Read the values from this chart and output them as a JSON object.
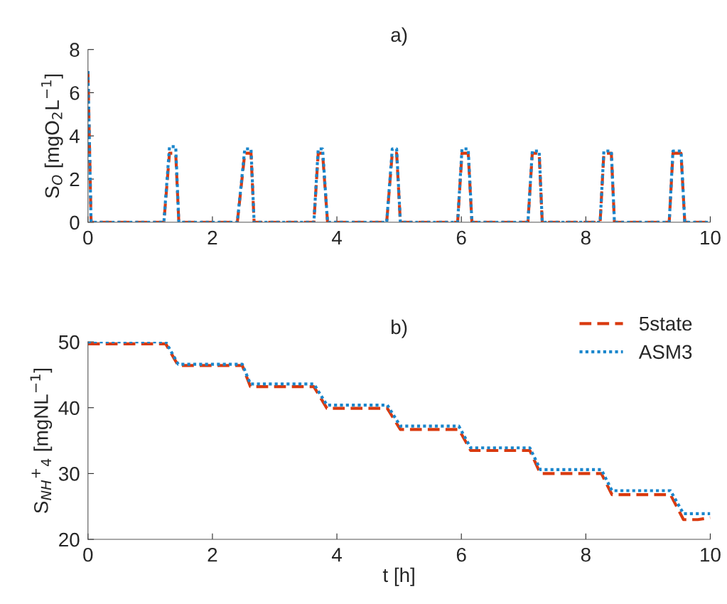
{
  "chart_data": [
    {
      "type": "line",
      "title": "a)",
      "ylabel": "S$_{O}$ [mgO$_{2}$L$^{−1}$]",
      "xlim": [
        0,
        10
      ],
      "xticks": [
        0,
        2,
        4,
        6,
        8,
        10
      ],
      "ylim": [
        0,
        8
      ],
      "yticks": [
        0,
        2,
        4,
        6,
        8
      ],
      "grid": false,
      "legend": false,
      "series": [
        {
          "color": "#d93a0f",
          "line_style": "dashed",
          "x": [
            0,
            0.05,
            1.22,
            1.31,
            1.41,
            1.46,
            2.4,
            2.52,
            2.62,
            2.67,
            3.63,
            3.7,
            3.77,
            3.85,
            4.8,
            4.89,
            4.96,
            5.02,
            5.94,
            6.01,
            6.11,
            6.17,
            7.07,
            7.14,
            7.25,
            7.3,
            8.23,
            8.29,
            8.41,
            8.46,
            9.34,
            9.4,
            9.53,
            9.59,
            10
          ],
          "values": [
            7,
            0,
            0,
            3.2,
            3.2,
            0,
            0,
            3.2,
            3.2,
            0,
            0,
            3.2,
            3.2,
            0,
            0,
            3.2,
            3.2,
            0,
            0,
            3.2,
            3.2,
            0,
            0,
            3.2,
            3.2,
            0,
            0,
            3.2,
            3.2,
            0,
            0,
            3.2,
            3.2,
            0,
            0
          ]
        },
        {
          "color": "#1a86cc",
          "line_style": "dotted",
          "x": [
            0,
            0.05,
            1.22,
            1.31,
            1.41,
            1.46,
            2.4,
            2.52,
            2.62,
            2.67,
            3.63,
            3.7,
            3.77,
            3.85,
            4.8,
            4.89,
            4.96,
            5.02,
            5.94,
            6.01,
            6.11,
            6.17,
            7.07,
            7.14,
            7.25,
            7.3,
            8.23,
            8.29,
            8.41,
            8.46,
            9.34,
            9.4,
            9.53,
            9.59,
            10
          ],
          "values": [
            7,
            0,
            0,
            3.5,
            3.5,
            0,
            0,
            3.4,
            3.4,
            0,
            0,
            3.4,
            3.4,
            0,
            0,
            3.4,
            3.4,
            0,
            0,
            3.4,
            3.4,
            0,
            0,
            3.3,
            3.3,
            0,
            0,
            3.3,
            3.3,
            0,
            0,
            3.3,
            3.3,
            0,
            0
          ]
        }
      ]
    },
    {
      "type": "line",
      "title": "b)",
      "xlabel": "t [h]",
      "ylabel": "S$_{NH}$$^{+}$$_{4}$ [mgNL$^{−1}$]",
      "xlim": [
        0,
        10
      ],
      "xticks": [
        0,
        2,
        4,
        6,
        8,
        10
      ],
      "ylim": [
        20,
        50
      ],
      "yticks": [
        20,
        30,
        40,
        50
      ],
      "grid": false,
      "legend": "top right",
      "series": [
        {
          "name": "5state",
          "color": "#d93a0f",
          "line_style": "dashed",
          "x": [
            0,
            1.25,
            1.45,
            2.48,
            2.61,
            3.63,
            3.84,
            4.81,
            5.02,
            5.96,
            6.15,
            7.1,
            7.27,
            8.25,
            8.42,
            9.36,
            9.57,
            9.8,
            10
          ],
          "values": [
            49.7,
            49.7,
            46.4,
            46.4,
            43.2,
            43.2,
            39.9,
            39.9,
            36.7,
            36.7,
            33.5,
            33.5,
            30.0,
            30.0,
            26.8,
            26.8,
            23.0,
            23.0,
            23.3
          ]
        },
        {
          "name": "ASM3",
          "color": "#1a86cc",
          "line_style": "dotted",
          "x": [
            0,
            1.25,
            1.45,
            2.48,
            2.61,
            3.63,
            3.84,
            4.81,
            5.02,
            5.96,
            6.15,
            7.1,
            7.27,
            8.25,
            8.42,
            9.36,
            9.57,
            9.8,
            10
          ],
          "values": [
            50,
            50,
            46.6,
            46.6,
            43.6,
            43.6,
            40.4,
            40.4,
            37.2,
            37.2,
            33.9,
            33.9,
            30.6,
            30.6,
            27.4,
            27.4,
            23.9,
            23.9,
            23.9
          ]
        }
      ]
    }
  ]
}
